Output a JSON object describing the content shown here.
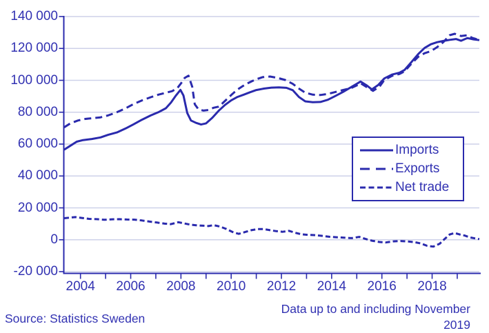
{
  "colors": {
    "line": "#2a2aad",
    "text": "#3232b2",
    "grid": "#ced1e9",
    "background": "#ffffff"
  },
  "footer": {
    "source": "Source: Statistics Sweden",
    "note_line1": "Data up to and including November",
    "note_line2": "2019"
  },
  "chart_data": {
    "type": "line",
    "title": "",
    "xlabel": "",
    "ylabel": "",
    "grid": true,
    "legend_position": "middle-right",
    "x_axis": {
      "range": [
        2003.35,
        2019.88
      ],
      "tick_years": [
        2004,
        2005,
        2006,
        2007,
        2008,
        2009,
        2010,
        2011,
        2012,
        2013,
        2014,
        2015,
        2016,
        2017,
        2018,
        2019
      ],
      "labeled_years": [
        2004,
        2006,
        2008,
        2010,
        2012,
        2014,
        2016,
        2018
      ],
      "tick_labels": [
        "2004",
        "2006",
        "2008",
        "2010",
        "2012",
        "2014",
        "2016",
        "2018"
      ]
    },
    "y_axis": {
      "range": [
        -20000,
        140000
      ],
      "tick_interval": 20000,
      "tick_values": [
        140000,
        120000,
        100000,
        80000,
        60000,
        40000,
        20000,
        0,
        -20000
      ],
      "tick_labels": [
        "140 000",
        "120 000",
        "100 000",
        "80 000",
        "60 000",
        "40 000",
        "20 000",
        "0",
        "-20 000"
      ]
    },
    "series": [
      {
        "name": "Imports",
        "style": "solid",
        "chart_dash": "",
        "legend_dash": "",
        "points": [
          [
            2003.35,
            56500
          ],
          [
            2003.6,
            59000
          ],
          [
            2003.85,
            61500
          ],
          [
            2004.1,
            62500
          ],
          [
            2004.45,
            63200
          ],
          [
            2004.8,
            64200
          ],
          [
            2005.1,
            65800
          ],
          [
            2005.45,
            67300
          ],
          [
            2005.8,
            69800
          ],
          [
            2006.1,
            72300
          ],
          [
            2006.45,
            75300
          ],
          [
            2006.8,
            78000
          ],
          [
            2007.1,
            80000
          ],
          [
            2007.4,
            82500
          ],
          [
            2007.6,
            86000
          ],
          [
            2007.8,
            90500
          ],
          [
            2007.98,
            94000
          ],
          [
            2008.1,
            90500
          ],
          [
            2008.25,
            79500
          ],
          [
            2008.4,
            74800
          ],
          [
            2008.6,
            73300
          ],
          [
            2008.8,
            72300
          ],
          [
            2009.0,
            73000
          ],
          [
            2009.25,
            76500
          ],
          [
            2009.5,
            80900
          ],
          [
            2009.75,
            84500
          ],
          [
            2010.0,
            87400
          ],
          [
            2010.25,
            89600
          ],
          [
            2010.5,
            91000
          ],
          [
            2010.75,
            92500
          ],
          [
            2011.0,
            93900
          ],
          [
            2011.3,
            94800
          ],
          [
            2011.6,
            95400
          ],
          [
            2011.9,
            95600
          ],
          [
            2012.2,
            95300
          ],
          [
            2012.45,
            93800
          ],
          [
            2012.7,
            89500
          ],
          [
            2012.95,
            86800
          ],
          [
            2013.25,
            86300
          ],
          [
            2013.55,
            86400
          ],
          [
            2013.85,
            87800
          ],
          [
            2014.15,
            90200
          ],
          [
            2014.45,
            92700
          ],
          [
            2014.75,
            95500
          ],
          [
            2015.0,
            97800
          ],
          [
            2015.15,
            99200
          ],
          [
            2015.4,
            96800
          ],
          [
            2015.6,
            94300
          ],
          [
            2015.85,
            97000
          ],
          [
            2016.1,
            101200
          ],
          [
            2016.4,
            103600
          ],
          [
            2016.7,
            104800
          ],
          [
            2016.9,
            106500
          ],
          [
            2017.15,
            111000
          ],
          [
            2017.45,
            116500
          ],
          [
            2017.7,
            120300
          ],
          [
            2017.95,
            122600
          ],
          [
            2018.2,
            123900
          ],
          [
            2018.45,
            124700
          ],
          [
            2018.7,
            125400
          ],
          [
            2018.95,
            125900
          ],
          [
            2019.15,
            124800
          ],
          [
            2019.4,
            126500
          ],
          [
            2019.65,
            125700
          ],
          [
            2019.88,
            125200
          ]
        ]
      },
      {
        "name": "Exports",
        "style": "long-dash",
        "chart_dash": "10 6",
        "legend_dash": "14 9",
        "points": [
          [
            2003.35,
            70500
          ],
          [
            2003.6,
            73000
          ],
          [
            2003.9,
            74800
          ],
          [
            2004.15,
            75700
          ],
          [
            2004.5,
            76300
          ],
          [
            2004.8,
            76800
          ],
          [
            2005.1,
            78000
          ],
          [
            2005.45,
            80000
          ],
          [
            2005.8,
            82500
          ],
          [
            2006.1,
            85000
          ],
          [
            2006.45,
            87400
          ],
          [
            2006.8,
            89400
          ],
          [
            2007.1,
            91000
          ],
          [
            2007.4,
            92200
          ],
          [
            2007.65,
            93200
          ],
          [
            2007.85,
            95000
          ],
          [
            2008.0,
            98000
          ],
          [
            2008.15,
            101500
          ],
          [
            2008.3,
            102900
          ],
          [
            2008.45,
            96000
          ],
          [
            2008.55,
            85000
          ],
          [
            2008.7,
            81800
          ],
          [
            2008.9,
            81000
          ],
          [
            2009.1,
            81400
          ],
          [
            2009.3,
            82800
          ],
          [
            2009.5,
            83500
          ],
          [
            2009.65,
            85500
          ],
          [
            2009.85,
            88500
          ],
          [
            2010.05,
            91500
          ],
          [
            2010.25,
            94200
          ],
          [
            2010.45,
            96300
          ],
          [
            2010.65,
            98100
          ],
          [
            2010.85,
            99600
          ],
          [
            2011.05,
            100900
          ],
          [
            2011.25,
            102000
          ],
          [
            2011.55,
            102400
          ],
          [
            2011.85,
            101500
          ],
          [
            2012.15,
            100200
          ],
          [
            2012.45,
            97800
          ],
          [
            2012.7,
            94800
          ],
          [
            2012.95,
            92200
          ],
          [
            2013.25,
            91000
          ],
          [
            2013.55,
            90800
          ],
          [
            2013.85,
            91500
          ],
          [
            2014.15,
            92700
          ],
          [
            2014.45,
            93900
          ],
          [
            2014.75,
            95000
          ],
          [
            2015.0,
            96800
          ],
          [
            2015.15,
            98200
          ],
          [
            2015.4,
            95700
          ],
          [
            2015.65,
            93400
          ],
          [
            2015.9,
            96000
          ],
          [
            2016.1,
            100200
          ],
          [
            2016.4,
            102800
          ],
          [
            2016.7,
            104000
          ],
          [
            2016.9,
            105600
          ],
          [
            2017.15,
            110000
          ],
          [
            2017.45,
            114800
          ],
          [
            2017.7,
            117000
          ],
          [
            2017.95,
            118300
          ],
          [
            2018.2,
            120800
          ],
          [
            2018.45,
            124000
          ],
          [
            2018.7,
            128300
          ],
          [
            2018.9,
            129200
          ],
          [
            2019.15,
            127800
          ],
          [
            2019.4,
            128300
          ],
          [
            2019.6,
            126600
          ],
          [
            2019.75,
            125900
          ],
          [
            2019.88,
            125600
          ]
        ]
      },
      {
        "name": "Net trade",
        "style": "short-dash",
        "chart_dash": "7 4",
        "legend_dash": "8 4.5",
        "points": [
          [
            2003.35,
            13500
          ],
          [
            2003.6,
            13900
          ],
          [
            2003.8,
            14200
          ],
          [
            2004.05,
            13700
          ],
          [
            2004.35,
            13100
          ],
          [
            2004.65,
            12900
          ],
          [
            2004.95,
            12500
          ],
          [
            2005.25,
            12800
          ],
          [
            2005.55,
            12900
          ],
          [
            2005.85,
            12700
          ],
          [
            2006.15,
            12600
          ],
          [
            2006.45,
            12100
          ],
          [
            2006.75,
            11400
          ],
          [
            2007.05,
            10800
          ],
          [
            2007.35,
            10100
          ],
          [
            2007.6,
            9800
          ],
          [
            2007.9,
            11000
          ],
          [
            2008.15,
            10200
          ],
          [
            2008.4,
            9400
          ],
          [
            2008.65,
            9000
          ],
          [
            2008.9,
            8800
          ],
          [
            2009.1,
            8600
          ],
          [
            2009.3,
            9200
          ],
          [
            2009.55,
            8300
          ],
          [
            2009.8,
            6800
          ],
          [
            2010.05,
            4900
          ],
          [
            2010.3,
            3700
          ],
          [
            2010.55,
            4800
          ],
          [
            2010.8,
            6000
          ],
          [
            2011.05,
            6700
          ],
          [
            2011.3,
            6700
          ],
          [
            2011.55,
            6000
          ],
          [
            2011.8,
            5400
          ],
          [
            2012.05,
            5000
          ],
          [
            2012.3,
            5600
          ],
          [
            2012.55,
            4400
          ],
          [
            2012.8,
            3400
          ],
          [
            2013.05,
            3100
          ],
          [
            2013.3,
            2900
          ],
          [
            2013.6,
            2500
          ],
          [
            2013.9,
            1900
          ],
          [
            2014.2,
            1600
          ],
          [
            2014.5,
            1300
          ],
          [
            2014.8,
            1000
          ],
          [
            2015.1,
            1800
          ],
          [
            2015.35,
            500
          ],
          [
            2015.6,
            -600
          ],
          [
            2015.9,
            -1400
          ],
          [
            2016.15,
            -1700
          ],
          [
            2016.45,
            -1000
          ],
          [
            2016.75,
            -800
          ],
          [
            2017.05,
            -1100
          ],
          [
            2017.3,
            -1500
          ],
          [
            2017.55,
            -2300
          ],
          [
            2017.8,
            -3800
          ],
          [
            2018.05,
            -4300
          ],
          [
            2018.3,
            -2500
          ],
          [
            2018.5,
            500
          ],
          [
            2018.7,
            3300
          ],
          [
            2018.9,
            4200
          ],
          [
            2019.1,
            3300
          ],
          [
            2019.3,
            2600
          ],
          [
            2019.5,
            1500
          ],
          [
            2019.7,
            900
          ],
          [
            2019.88,
            400
          ]
        ]
      }
    ]
  }
}
